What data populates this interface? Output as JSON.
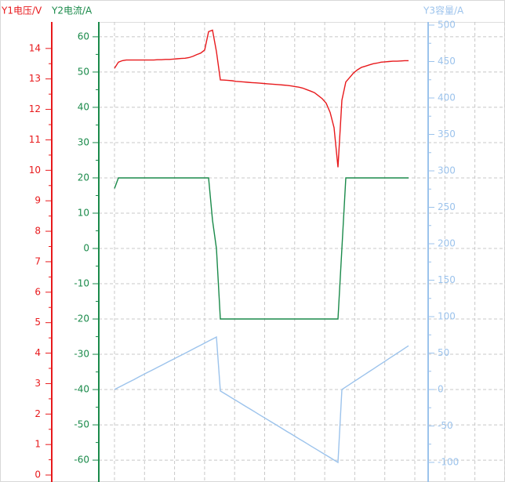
{
  "chart_data": {
    "type": "line",
    "y_label": "Y1电压/V",
    "y2_label": "Y2电流/A",
    "y3_label": "Y3容量/A",
    "ylim": [
      -0.23,
      14.87
    ],
    "yticks": [
      0,
      1,
      2,
      3,
      4,
      5,
      6,
      7,
      8,
      9,
      10,
      11,
      12,
      13,
      14
    ],
    "y2lim": [
      -66.2,
      64.2
    ],
    "y2ticks": [
      -60,
      -50,
      -40,
      -30,
      -20,
      -10,
      0,
      10,
      20,
      30,
      40,
      50,
      60
    ],
    "y3lim": [
      -126.9,
      504.3
    ],
    "y3ticks": [
      -100,
      -50,
      0,
      50,
      100,
      150,
      200,
      250,
      300,
      350,
      400,
      450,
      500
    ],
    "grid": true,
    "axis_colors": {
      "y": "#e8191c",
      "y2": "#1a8a4a",
      "y3": "#9cc3ec"
    },
    "series": [
      {
        "axis": "y",
        "color": "#e8191c",
        "values": [
          13.35,
          13.55,
          13.6,
          13.62,
          13.62,
          13.62,
          13.62,
          13.62,
          13.62,
          13.62,
          13.62,
          13.63,
          13.63,
          13.64,
          13.64,
          13.65,
          13.66,
          13.67,
          13.68,
          13.7,
          13.74,
          13.8,
          13.85,
          13.95,
          14.55,
          14.6,
          13.9,
          12.97,
          12.96,
          12.95,
          12.94,
          12.92,
          12.91,
          12.9,
          12.89,
          12.88,
          12.87,
          12.86,
          12.85,
          12.84,
          12.83,
          12.82,
          12.81,
          12.8,
          12.79,
          12.77,
          12.75,
          12.73,
          12.7,
          12.65,
          12.6,
          12.55,
          12.45,
          12.35,
          12.2,
          11.9,
          11.4,
          10.1,
          12.3,
          12.9,
          13.05,
          13.2,
          13.3,
          13.38,
          13.42,
          13.46,
          13.5,
          13.52,
          13.55,
          13.56,
          13.57,
          13.58,
          13.58,
          13.59,
          13.6,
          13.6
        ]
      },
      {
        "axis": "y2",
        "color": "#1a8a4a",
        "values": [
          17,
          20,
          20,
          20,
          20,
          20,
          20,
          20,
          20,
          20,
          20,
          20,
          20,
          20,
          20,
          20,
          20,
          20,
          20,
          20,
          20,
          20,
          20,
          20,
          20,
          8,
          0,
          -20,
          -20,
          -20,
          -20,
          -20,
          -20,
          -20,
          -20,
          -20,
          -20,
          -20,
          -20,
          -20,
          -20,
          -20,
          -20,
          -20,
          -20,
          -20,
          -20,
          -20,
          -20,
          -20,
          -20,
          -20,
          -20,
          -20,
          -20,
          -20,
          -20,
          -20,
          0,
          20,
          20,
          20,
          20,
          20,
          20,
          20,
          20,
          20,
          20,
          20,
          20,
          20,
          20,
          20,
          20,
          20
        ]
      },
      {
        "axis": "y3",
        "color": "#9cc3ec",
        "values": [
          0,
          2.8,
          5.5,
          8.3,
          11.1,
          13.8,
          16.6,
          19.4,
          22.2,
          24.9,
          27.7,
          30.5,
          33.2,
          36,
          38.8,
          41.5,
          44.3,
          47.1,
          49.8,
          52.6,
          55.4,
          58.2,
          60.9,
          63.7,
          66.5,
          69.2,
          72,
          -2,
          -5.3,
          -8.5,
          -11.8,
          -15.1,
          -18.3,
          -21.6,
          -24.9,
          -28.1,
          -31.4,
          -34.7,
          -38,
          -41.2,
          -44.5,
          -47.8,
          -51,
          -54.3,
          -57.6,
          -60.8,
          -64.1,
          -67.4,
          -70.6,
          -73.9,
          -77.2,
          -80.4,
          -83.7,
          -87,
          -90.2,
          -93.5,
          -96.8,
          -100,
          0,
          3.5,
          7.1,
          10.6,
          14.1,
          17.6,
          21.2,
          24.7,
          28.2,
          31.8,
          35.3,
          38.8,
          42.4,
          45.9,
          49.4,
          52.9,
          56.5,
          60
        ]
      }
    ]
  }
}
